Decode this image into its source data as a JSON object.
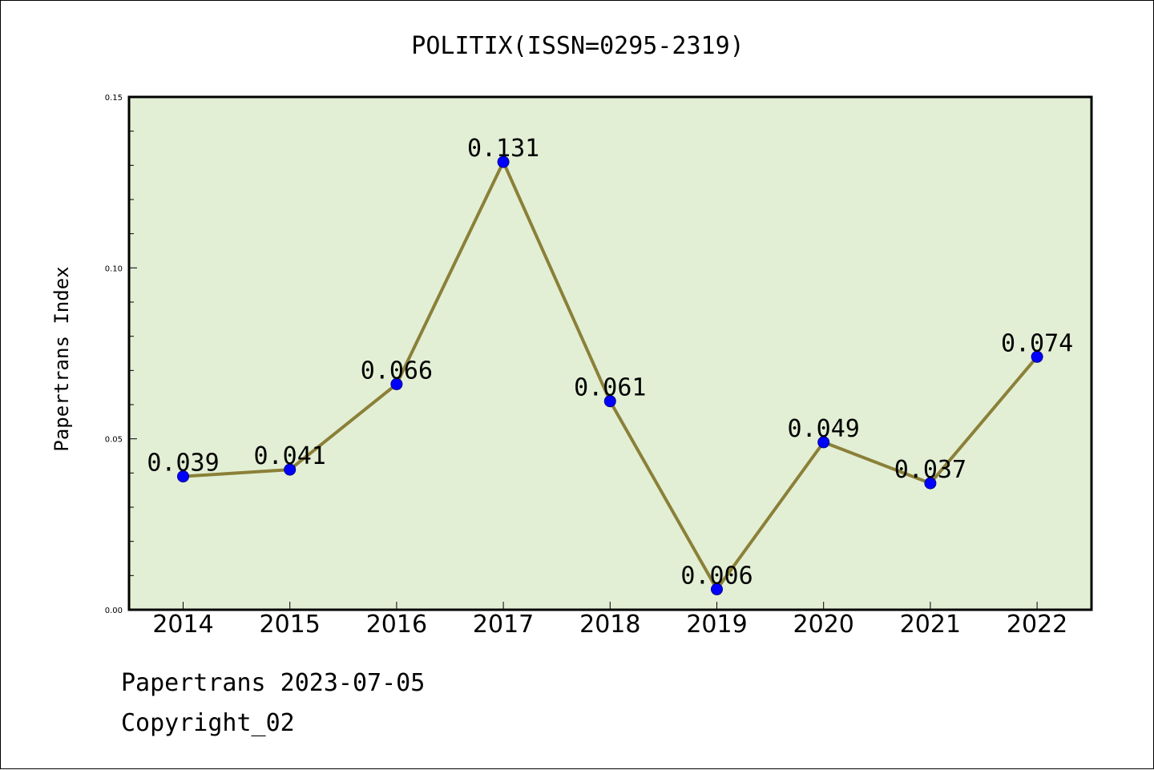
{
  "chart_data": {
    "type": "line",
    "title": "POLITIX(ISSN=0295-2319)",
    "xlabel": "",
    "ylabel": "Papertrans Index",
    "categories": [
      "2014",
      "2015",
      "2016",
      "2017",
      "2018",
      "2019",
      "2020",
      "2021",
      "2022"
    ],
    "values": [
      0.039,
      0.041,
      0.066,
      0.131,
      0.061,
      0.006,
      0.049,
      0.037,
      0.074
    ],
    "data_labels": [
      "0.039",
      "0.041",
      "0.066",
      "0.131",
      "0.061",
      "0.006",
      "0.049",
      "0.037",
      "0.074"
    ],
    "ylim": [
      0,
      0.15
    ],
    "yticks": [
      "0.00",
      "0.05",
      "0.10",
      "0.15"
    ],
    "grid": false,
    "colors": {
      "line": "#8b8038",
      "marker": "#0000ff",
      "background": "#e2efd5"
    }
  },
  "footer": {
    "line1": "Papertrans 2023-07-05",
    "line2": "Copyright_02"
  }
}
